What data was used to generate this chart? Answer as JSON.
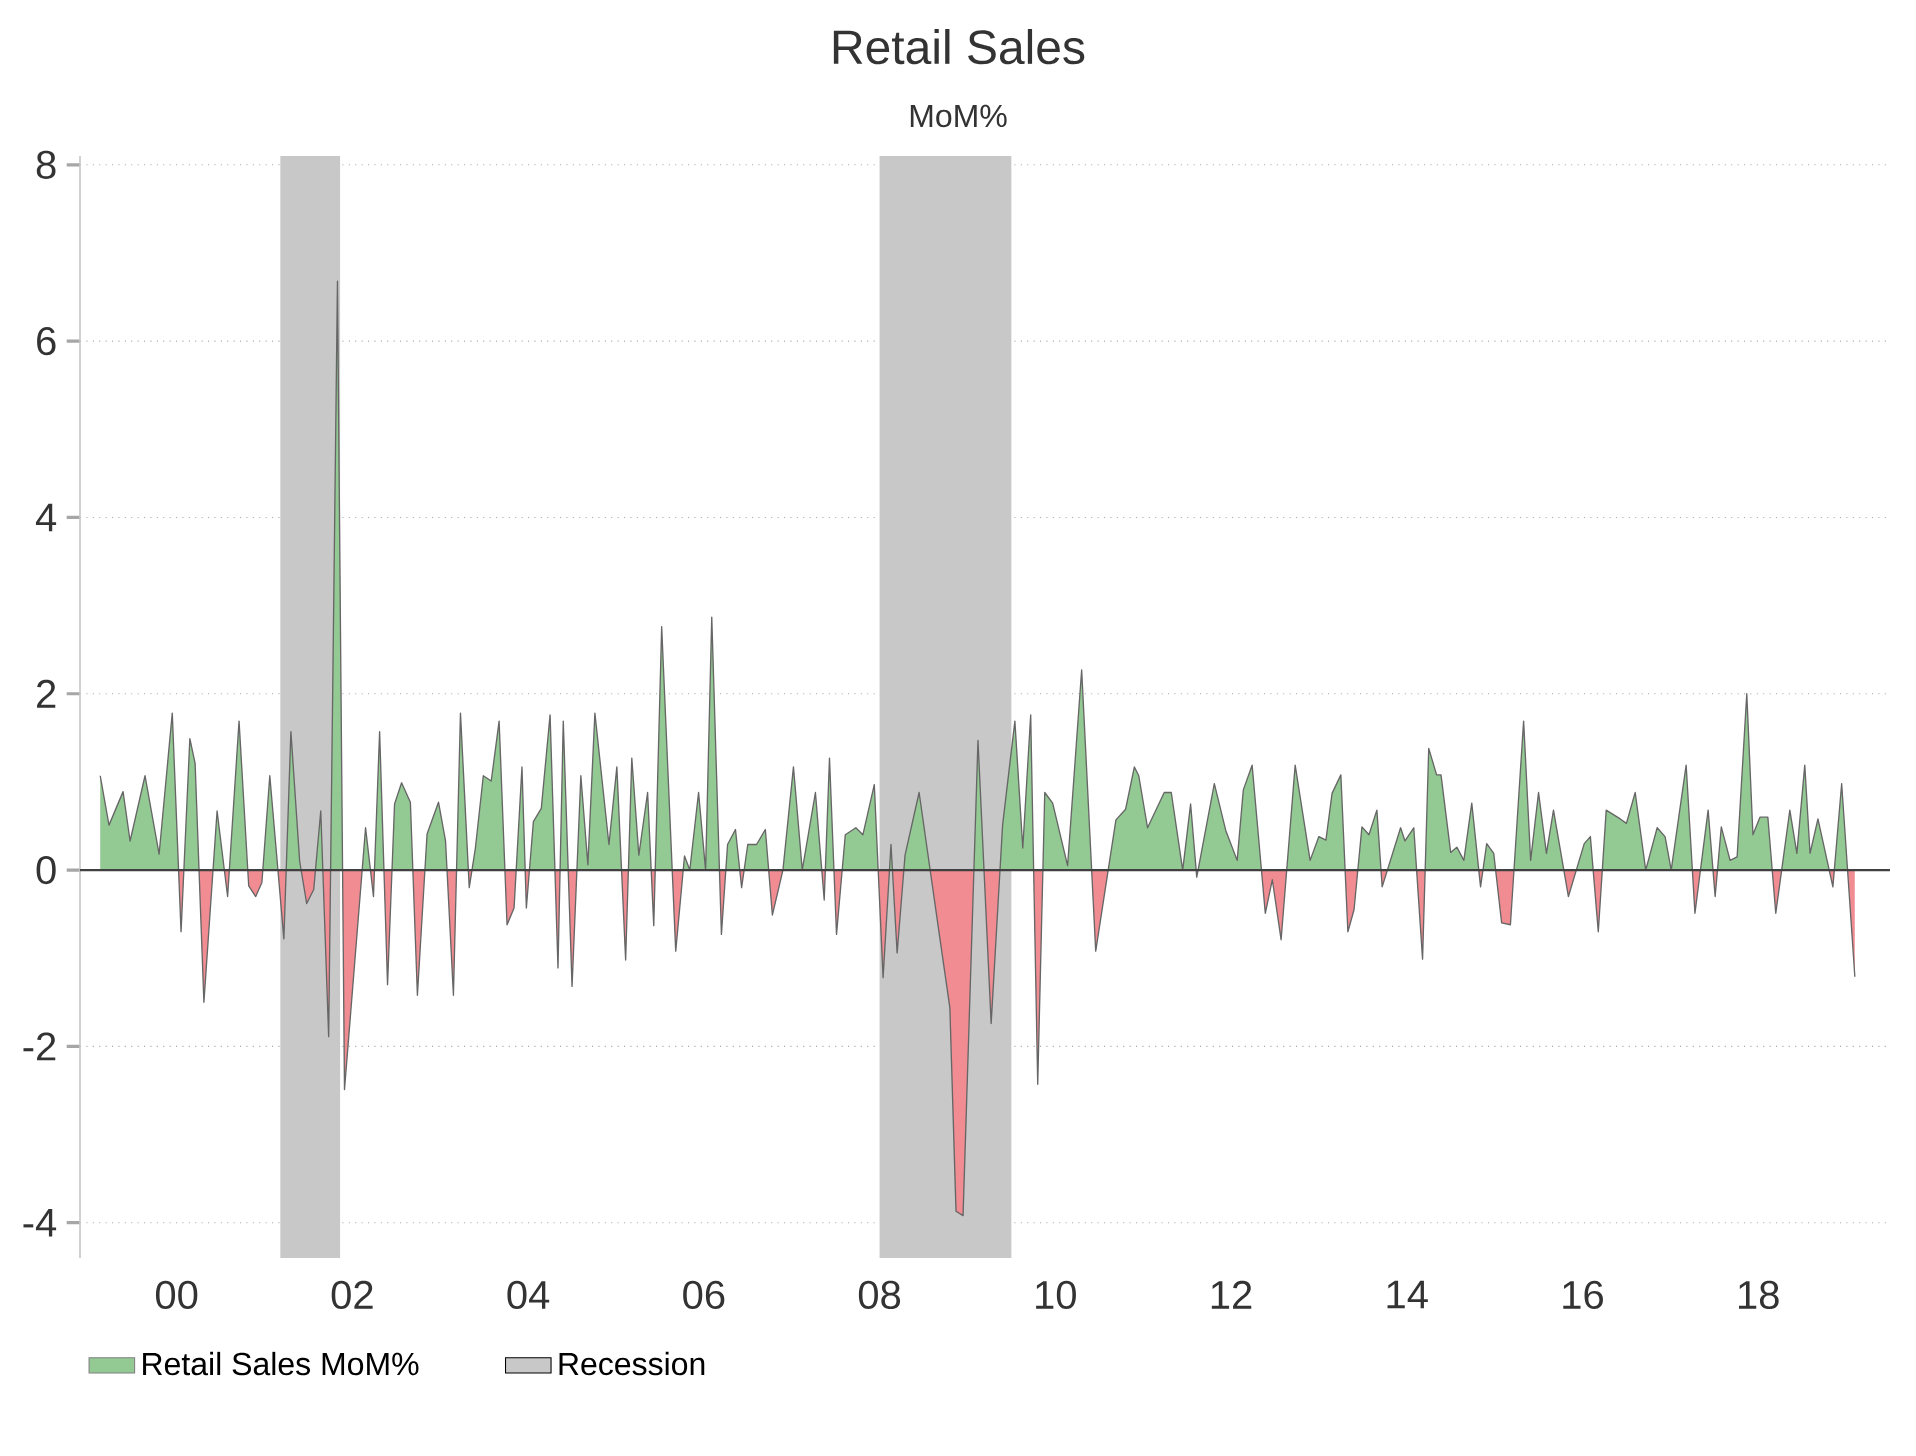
{
  "chart_data": {
    "type": "area",
    "title": "Retail Sales",
    "subtitle": "MoM%",
    "series": [
      {
        "name": "Retail Sales MoM%",
        "color": "#93c993",
        "x": [
          1999.13,
          1999.23,
          1999.39,
          1999.47,
          1999.64,
          1999.8,
          1999.95,
          2000.05,
          2000.15,
          2000.21,
          2000.31,
          2000.46,
          2000.58,
          2000.71,
          2000.82,
          2000.9,
          2000.97,
          2001.06,
          2001.22,
          2001.3,
          2001.4,
          2001.48,
          2001.56,
          2001.64,
          2001.73,
          2001.83,
          2001.91,
          2002.15,
          2002.24,
          2002.31,
          2002.4,
          2002.48,
          2002.56,
          2002.66,
          2002.74,
          2002.85,
          2002.98,
          2003.06,
          2003.15,
          2003.23,
          2003.33,
          2003.4,
          2003.49,
          2003.58,
          2003.67,
          2003.76,
          2003.84,
          2003.93,
          2003.98,
          2004.06,
          2004.15,
          2004.25,
          2004.34,
          2004.4,
          2004.5,
          2004.6,
          2004.68,
          2004.76,
          2004.92,
          2005.01,
          2005.11,
          2005.18,
          2005.26,
          2005.36,
          2005.43,
          2005.52,
          2005.68,
          2005.78,
          2005.84,
          2005.94,
          2006.02,
          2006.09,
          2006.2,
          2006.27,
          2006.36,
          2006.43,
          2006.5,
          2006.6,
          2006.7,
          2006.78,
          2006.9,
          2007.02,
          2007.12,
          2007.27,
          2007.37,
          2007.43,
          2007.51,
          2007.61,
          2007.73,
          2007.81,
          2007.94,
          2008.04,
          2008.13,
          2008.2,
          2008.29,
          2008.45,
          2008.68,
          2008.8,
          2008.87,
          2008.95,
          2009.12,
          2009.27,
          2009.4,
          2009.54,
          2009.63,
          2009.72,
          2009.8,
          2009.88,
          2009.97,
          2010.14,
          2010.3,
          2010.46,
          2010.69,
          2010.8,
          2010.9,
          2010.95,
          2011.05,
          2011.24,
          2011.32,
          2011.45,
          2011.54,
          2011.61,
          2011.81,
          2011.94,
          2012.07,
          2012.14,
          2012.24,
          2012.39,
          2012.47,
          2012.57,
          2012.73,
          2012.9,
          2013.0,
          2013.08,
          2013.15,
          2013.25,
          2013.33,
          2013.4,
          2013.49,
          2013.57,
          2013.66,
          2013.72,
          2013.93,
          2013.98,
          2014.08,
          2014.18,
          2014.25,
          2014.34,
          2014.39,
          2014.5,
          2014.57,
          2014.65,
          2014.74,
          2014.84,
          2014.91,
          2014.99,
          2015.08,
          2015.18,
          2015.33,
          2015.41,
          2015.5,
          2015.59,
          2015.67,
          2015.84,
          2016.02,
          2016.09,
          2016.18,
          2016.27,
          2016.43,
          2016.5,
          2016.6,
          2016.72,
          2016.85,
          2016.94,
          2017.01,
          2017.18,
          2017.28,
          2017.43,
          2017.51,
          2017.58,
          2017.68,
          2017.76,
          2017.87,
          2017.94,
          2018.02,
          2018.11,
          2018.2,
          2018.36,
          2018.44,
          2018.53,
          2018.59,
          2018.68,
          2018.85,
          2018.95,
          2019.1
        ],
        "values": [
          1.07,
          0.51,
          0.89,
          0.33,
          1.07,
          0.18,
          1.78,
          -0.7,
          1.49,
          1.21,
          -1.5,
          0.67,
          -0.3,
          1.69,
          -0.18,
          -0.3,
          -0.14,
          1.07,
          -0.78,
          1.57,
          0.1,
          -0.38,
          -0.22,
          0.67,
          -1.89,
          6.68,
          -2.49,
          0.48,
          -0.3,
          1.57,
          -1.3,
          0.75,
          0.99,
          0.77,
          -1.42,
          0.41,
          0.77,
          0.33,
          -1.42,
          1.78,
          -0.2,
          0.25,
          1.07,
          1.01,
          1.69,
          -0.62,
          -0.43,
          1.17,
          -0.43,
          0.55,
          0.7,
          1.76,
          -1.11,
          1.69,
          -1.32,
          1.07,
          0.06,
          1.78,
          0.29,
          1.17,
          -1.02,
          1.27,
          0.17,
          0.88,
          -0.63,
          2.76,
          -0.92,
          0.16,
          0,
          0.88,
          0,
          2.87,
          -0.73,
          0.29,
          0.46,
          -0.2,
          0.29,
          0.29,
          0.46,
          -0.51,
          0,
          1.17,
          0,
          0.88,
          -0.34,
          1.27,
          -0.73,
          0.4,
          0.48,
          0.4,
          0.97,
          -1.22,
          0.29,
          -0.94,
          0.17,
          0.88,
          -0.73,
          -1.56,
          -3.87,
          -3.92,
          1.47,
          -1.74,
          0.51,
          1.69,
          0.25,
          1.76,
          -2.43,
          0.88,
          0.76,
          0.05,
          2.27,
          -0.92,
          0.57,
          0.69,
          1.17,
          1.07,
          0.48,
          0.88,
          0.88,
          0,
          0.75,
          -0.08,
          0.98,
          0.45,
          0.11,
          0.91,
          1.19,
          -0.49,
          -0.11,
          -0.79,
          1.19,
          0.11,
          0.38,
          0.34,
          0.87,
          1.08,
          -0.7,
          -0.45,
          0.49,
          0.4,
          0.68,
          -0.19,
          0.48,
          0.33,
          0.48,
          -1.01,
          1.38,
          1.08,
          1.08,
          0.2,
          0.26,
          0.11,
          0.76,
          -0.19,
          0.3,
          0.19,
          -0.6,
          -0.62,
          1.69,
          0.11,
          0.88,
          0.19,
          0.68,
          -0.3,
          0.3,
          0.38,
          -0.7,
          0.68,
          0.58,
          0.53,
          0.88,
          0,
          0.48,
          0.38,
          0,
          1.19,
          -0.49,
          0.68,
          -0.3,
          0.49,
          0.11,
          0.15,
          2.0,
          0.4,
          0.6,
          0.6,
          -0.49,
          0.68,
          0.19,
          1.19,
          0.19,
          0.58,
          -0.19,
          0.98,
          -1.21
        ]
      }
    ],
    "bands": [
      {
        "axis": "x",
        "from": 2001.18,
        "to": 2001.86,
        "label": "Recession",
        "color": "#c8c8c8"
      },
      {
        "axis": "x",
        "from": 2008.0,
        "to": 2009.5,
        "color": "#c8c8c8"
      }
    ],
    "xlim": [
      1998.9,
      2019.5
    ],
    "ylim": [
      -4.4,
      8.1
    ],
    "xticks": [
      {
        "value": 2000,
        "label": "00"
      },
      {
        "value": 2002,
        "label": "02"
      },
      {
        "value": 2004,
        "label": "04"
      },
      {
        "value": 2006,
        "label": "06"
      },
      {
        "value": 2008,
        "label": "08"
      },
      {
        "value": 2010,
        "label": "10"
      },
      {
        "value": 2012,
        "label": "12"
      },
      {
        "value": 2014,
        "label": "14"
      },
      {
        "value": 2016,
        "label": "16"
      },
      {
        "value": 2018,
        "label": "18"
      }
    ],
    "yticks": [
      -4,
      -2,
      0,
      2,
      4,
      6,
      8
    ],
    "grid": "y",
    "legend": "bottom left"
  }
}
